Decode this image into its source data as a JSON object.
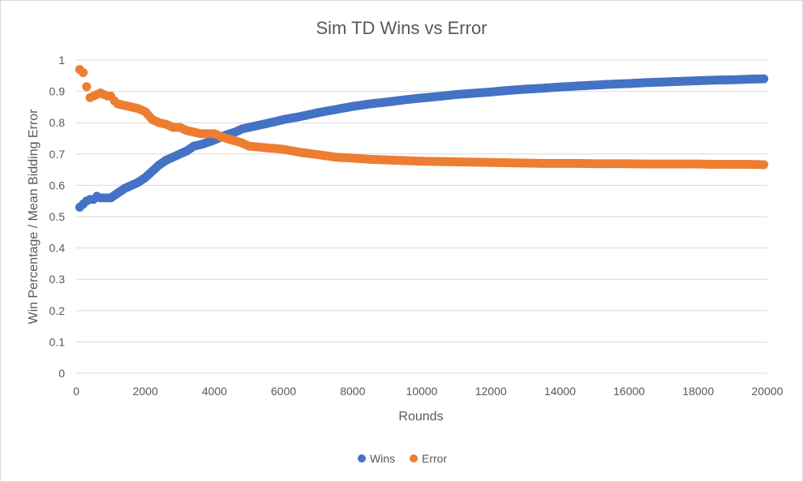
{
  "chart_data": {
    "type": "scatter",
    "title": "Sim TD Wins vs Error",
    "xlabel": "Rounds",
    "ylabel": "Win Percentage / Mean Bidding Error",
    "xlim": [
      0,
      20000
    ],
    "ylim": [
      0,
      1
    ],
    "x_ticks": [
      "0",
      "2000",
      "4000",
      "6000",
      "8000",
      "10000",
      "12000",
      "14000",
      "16000",
      "18000",
      "20000"
    ],
    "y_ticks": [
      "0",
      "0.1",
      "0.2",
      "0.3",
      "0.4",
      "0.5",
      "0.6",
      "0.7",
      "0.8",
      "0.9",
      "1"
    ],
    "grid": "horizontal",
    "legend_position": "bottom",
    "series": [
      {
        "name": "Wins",
        "color": "#4472c4",
        "points": [
          [
            100,
            0.53
          ],
          [
            200,
            0.54
          ],
          [
            300,
            0.55
          ],
          [
            400,
            0.555
          ],
          [
            500,
            0.555
          ],
          [
            600,
            0.565
          ],
          [
            700,
            0.56
          ],
          [
            800,
            0.56
          ],
          [
            900,
            0.56
          ],
          [
            1000,
            0.56
          ],
          [
            1200,
            0.575
          ],
          [
            1400,
            0.59
          ],
          [
            1600,
            0.6
          ],
          [
            1800,
            0.61
          ],
          [
            2000,
            0.625
          ],
          [
            2200,
            0.645
          ],
          [
            2400,
            0.665
          ],
          [
            2600,
            0.68
          ],
          [
            2800,
            0.69
          ],
          [
            3000,
            0.7
          ],
          [
            3200,
            0.71
          ],
          [
            3400,
            0.725
          ],
          [
            3600,
            0.73
          ],
          [
            3800,
            0.737
          ],
          [
            4000,
            0.745
          ],
          [
            4200,
            0.755
          ],
          [
            4400,
            0.763
          ],
          [
            4600,
            0.77
          ],
          [
            4800,
            0.78
          ],
          [
            5000,
            0.785
          ],
          [
            5500,
            0.797
          ],
          [
            6000,
            0.81
          ],
          [
            6500,
            0.82
          ],
          [
            7000,
            0.832
          ],
          [
            7500,
            0.842
          ],
          [
            8000,
            0.852
          ],
          [
            8500,
            0.86
          ],
          [
            9000,
            0.866
          ],
          [
            9500,
            0.873
          ],
          [
            10000,
            0.879
          ],
          [
            10500,
            0.884
          ],
          [
            11000,
            0.89
          ],
          [
            11500,
            0.894
          ],
          [
            12000,
            0.898
          ],
          [
            12500,
            0.903
          ],
          [
            13000,
            0.907
          ],
          [
            13500,
            0.91
          ],
          [
            14000,
            0.914
          ],
          [
            14500,
            0.917
          ],
          [
            15000,
            0.92
          ],
          [
            15500,
            0.923
          ],
          [
            16000,
            0.925
          ],
          [
            16500,
            0.928
          ],
          [
            17000,
            0.93
          ],
          [
            17500,
            0.932
          ],
          [
            18000,
            0.934
          ],
          [
            18500,
            0.936
          ],
          [
            19000,
            0.937
          ],
          [
            19500,
            0.939
          ],
          [
            19900,
            0.94
          ]
        ]
      },
      {
        "name": "Error",
        "color": "#ed7d31",
        "points": [
          [
            100,
            0.97
          ],
          [
            200,
            0.96
          ],
          [
            300,
            0.915
          ],
          [
            400,
            0.88
          ],
          [
            500,
            0.885
          ],
          [
            600,
            0.89
          ],
          [
            700,
            0.895
          ],
          [
            800,
            0.89
          ],
          [
            900,
            0.885
          ],
          [
            1000,
            0.885
          ],
          [
            1100,
            0.87
          ],
          [
            1200,
            0.86
          ],
          [
            1400,
            0.855
          ],
          [
            1600,
            0.85
          ],
          [
            1800,
            0.845
          ],
          [
            2000,
            0.835
          ],
          [
            2200,
            0.81
          ],
          [
            2400,
            0.8
          ],
          [
            2600,
            0.795
          ],
          [
            2800,
            0.785
          ],
          [
            3000,
            0.785
          ],
          [
            3200,
            0.775
          ],
          [
            3400,
            0.77
          ],
          [
            3600,
            0.765
          ],
          [
            3800,
            0.765
          ],
          [
            4000,
            0.765
          ],
          [
            4200,
            0.755
          ],
          [
            4400,
            0.748
          ],
          [
            4600,
            0.742
          ],
          [
            4800,
            0.735
          ],
          [
            5000,
            0.725
          ],
          [
            5500,
            0.72
          ],
          [
            6000,
            0.715
          ],
          [
            6500,
            0.705
          ],
          [
            7000,
            0.698
          ],
          [
            7500,
            0.69
          ],
          [
            8000,
            0.687
          ],
          [
            8500,
            0.683
          ],
          [
            9000,
            0.681
          ],
          [
            9500,
            0.679
          ],
          [
            10000,
            0.677
          ],
          [
            10500,
            0.676
          ],
          [
            11000,
            0.675
          ],
          [
            11500,
            0.674
          ],
          [
            12000,
            0.673
          ],
          [
            12500,
            0.672
          ],
          [
            13000,
            0.671
          ],
          [
            13500,
            0.67
          ],
          [
            14000,
            0.67
          ],
          [
            14500,
            0.67
          ],
          [
            15000,
            0.669
          ],
          [
            15500,
            0.669
          ],
          [
            16000,
            0.669
          ],
          [
            16500,
            0.668
          ],
          [
            17000,
            0.668
          ],
          [
            17500,
            0.668
          ],
          [
            18000,
            0.668
          ],
          [
            18500,
            0.667
          ],
          [
            19000,
            0.667
          ],
          [
            19500,
            0.667
          ],
          [
            19900,
            0.666
          ]
        ]
      }
    ]
  }
}
